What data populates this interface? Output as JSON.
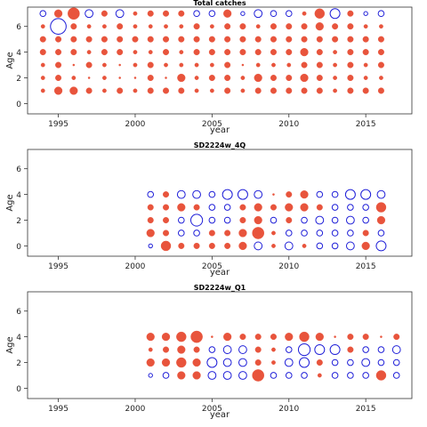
{
  "chart_data": [
    {
      "type": "scatter",
      "title": "Total catches",
      "xlabel": "year",
      "ylabel": "Age",
      "xlim": [
        1993,
        2018
      ],
      "ylim": [
        -0.8,
        7.5
      ],
      "xticks": [
        1995,
        2000,
        2005,
        2010,
        2015
      ],
      "yticks": [
        0,
        2,
        4,
        6
      ],
      "marker_colors": {
        "positive": "#e8543c",
        "negative": "#1f1fd8"
      },
      "ages": [
        1,
        2,
        3,
        4,
        5,
        6,
        7
      ],
      "years": [
        1994,
        1995,
        1996,
        1997,
        1998,
        1999,
        2000,
        2001,
        2002,
        2003,
        2004,
        2005,
        2006,
        2007,
        2008,
        2009,
        2010,
        2011,
        2012,
        2013,
        2014,
        2015,
        2016
      ],
      "residuals": [
        [
          0.2,
          0.4,
          0.4,
          0.3,
          0.2,
          0.3,
          0.2,
          0.3,
          0.3,
          0.3,
          0.2,
          0.2,
          0.3,
          0.2,
          0.3,
          0.3,
          0.3,
          0.3,
          0.3,
          0.2,
          0.3,
          0.3,
          0.3
        ],
        [
          0.2,
          0.3,
          0.2,
          0.1,
          0.2,
          0.1,
          0.1,
          0.3,
          0.1,
          0.4,
          0.2,
          0.3,
          0.3,
          0.2,
          0.4,
          0.3,
          0.3,
          0.4,
          0.3,
          0.2,
          0.3,
          0.2,
          0.2
        ],
        [
          0.2,
          0.3,
          0.1,
          0.3,
          0.2,
          0.1,
          0.2,
          0.3,
          0.2,
          0.2,
          0.2,
          0.2,
          0.3,
          0.1,
          0.2,
          0.2,
          0.2,
          0.3,
          0.3,
          0.2,
          0.3,
          0.2,
          0.3
        ],
        [
          0.3,
          0.3,
          0.3,
          0.2,
          0.3,
          0.3,
          0.2,
          0.2,
          0.3,
          0.2,
          0.3,
          0.3,
          0.3,
          0.3,
          0.3,
          0.3,
          0.3,
          0.4,
          0.3,
          0.2,
          0.3,
          0.3,
          0.3
        ],
        [
          0.3,
          0.3,
          0.3,
          0.3,
          0.3,
          0.3,
          0.3,
          0.3,
          0.3,
          0.3,
          0.3,
          0.3,
          0.3,
          0.3,
          0.3,
          0.3,
          0.3,
          0.3,
          0.3,
          0.3,
          0.3,
          0.3,
          0.3
        ],
        [
          0.2,
          -0.8,
          0.3,
          0.2,
          0.2,
          0.3,
          0.2,
          0.2,
          0.2,
          0.2,
          0.3,
          0.2,
          0.3,
          0.3,
          0.2,
          0.3,
          0.3,
          0.3,
          0.4,
          0.3,
          0.3,
          0.2,
          0.2
        ],
        [
          -0.3,
          0.4,
          0.6,
          -0.4,
          0.3,
          -0.4,
          0.2,
          0.3,
          0.3,
          0.3,
          -0.3,
          -0.3,
          0.4,
          -0.2,
          -0.4,
          -0.3,
          -0.3,
          0.2,
          0.5,
          -0.5,
          0.3,
          -0.2,
          -0.3
        ]
      ]
    },
    {
      "type": "scatter",
      "title": "SD2224w_4Q",
      "xlabel": "year",
      "ylabel": "Age",
      "xlim": [
        1993,
        2018
      ],
      "ylim": [
        -0.8,
        7.5
      ],
      "xticks": [
        1995,
        2000,
        2005,
        2010,
        2015
      ],
      "yticks": [
        0,
        2,
        4,
        6
      ],
      "marker_colors": {
        "positive": "#e8543c",
        "negative": "#1f1fd8"
      },
      "ages": [
        0,
        1,
        2,
        3,
        4
      ],
      "years": [
        2001,
        2002,
        2003,
        2004,
        2005,
        2006,
        2007,
        2008,
        2009,
        2010,
        2011,
        2012,
        2013,
        2014,
        2015,
        2016
      ],
      "residuals": [
        [
          -0.2,
          0.5,
          0.3,
          0.3,
          0.3,
          0.3,
          0.4,
          -0.4,
          0.2,
          -0.4,
          0.2,
          -0.3,
          -0.3,
          -0.4,
          0.4,
          -0.5
        ],
        [
          0.4,
          0.3,
          -0.3,
          -0.3,
          0.3,
          0.3,
          0.4,
          0.6,
          0.2,
          -0.3,
          -0.3,
          -0.3,
          -0.3,
          -0.3,
          0.3,
          -0.3
        ],
        [
          0.3,
          0.3,
          -0.3,
          -0.6,
          -0.3,
          -0.3,
          0.3,
          0.4,
          -0.3,
          0.3,
          -0.3,
          -0.4,
          -0.3,
          -0.4,
          -0.3,
          0.4
        ],
        [
          0.3,
          0.3,
          0.4,
          0.3,
          -0.3,
          -0.3,
          0.3,
          0.4,
          0.3,
          0.4,
          0.4,
          0.3,
          -0.3,
          -0.3,
          -0.3,
          0.5
        ],
        [
          -0.3,
          0.3,
          -0.4,
          -0.4,
          -0.3,
          -0.5,
          -0.5,
          -0.4,
          0.1,
          0.3,
          0.4,
          -0.3,
          -0.3,
          -0.5,
          -0.5,
          -0.4
        ]
      ]
    },
    {
      "type": "scatter",
      "title": "SD2224w_Q1",
      "xlabel": "year",
      "ylabel": "Age",
      "xlim": [
        1993,
        2018
      ],
      "ylim": [
        -0.8,
        7.5
      ],
      "xticks": [
        1995,
        2000,
        2005,
        2010,
        2015
      ],
      "yticks": [
        0,
        2,
        4,
        6
      ],
      "marker_colors": {
        "positive": "#e8543c",
        "negative": "#1f1fd8"
      },
      "ages": [
        1,
        2,
        3,
        4
      ],
      "years": [
        2001,
        2002,
        2003,
        2004,
        2005,
        2006,
        2007,
        2008,
        2009,
        2010,
        2011,
        2012,
        2013,
        2014,
        2015,
        2016,
        2017
      ],
      "residuals": [
        [
          -0.2,
          -0.3,
          0.4,
          0.4,
          -0.4,
          -0.4,
          -0.4,
          0.6,
          -0.3,
          -0.3,
          -0.3,
          0.2,
          -0.3,
          -0.3,
          -0.3,
          0.5,
          -0.3
        ],
        [
          0.4,
          0.4,
          0.5,
          0.4,
          -0.5,
          -0.4,
          -0.4,
          0.3,
          0.2,
          -0.4,
          -0.5,
          0.3,
          -0.3,
          -0.3,
          -0.4,
          -0.3,
          -0.3
        ],
        [
          0.2,
          0.3,
          0.4,
          0.3,
          -0.3,
          -0.4,
          -0.4,
          0.3,
          0.2,
          -0.3,
          -0.6,
          -0.5,
          -0.5,
          0.3,
          -0.3,
          -0.3,
          -0.4
        ],
        [
          0.4,
          0.4,
          0.5,
          0.6,
          0.1,
          0.4,
          0.3,
          0.3,
          0.3,
          0.4,
          0.5,
          0.4,
          0.1,
          0.3,
          0.3,
          0.1,
          0.3
        ]
      ]
    }
  ]
}
